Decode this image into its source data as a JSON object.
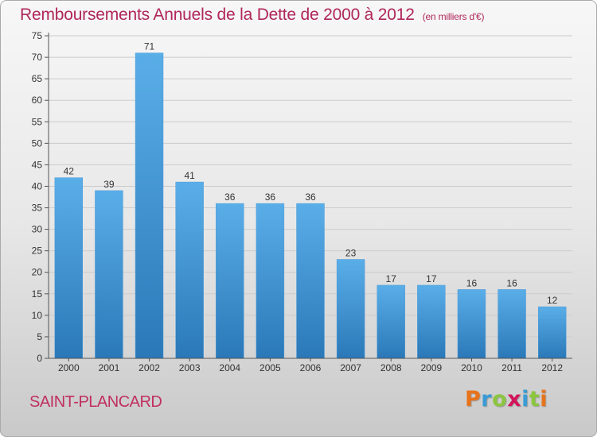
{
  "header": {
    "title": "Remboursements Annuels de la Dette de 2000 à 2012",
    "unit": "(en milliers d'€)"
  },
  "footer": {
    "place": "SAINT-PLANCARD",
    "logo_text": "Proxiti",
    "logo_colors": [
      "#e8731a",
      "#3a9bd5",
      "#8cc63f",
      "#d4145a",
      "#3a9bd5",
      "#8cc63f",
      "#e8731a"
    ]
  },
  "colors": {
    "title": "#b0275a",
    "bar_light": "#5aaee8",
    "bar_dark": "#2a78b8",
    "grid": "#cccccc"
  },
  "chart_data": {
    "type": "bar",
    "title": "Remboursements Annuels de la Dette de 2000 à 2012",
    "subtitle": "(en milliers d'€)",
    "categories": [
      "2000",
      "2001",
      "2002",
      "2003",
      "2004",
      "2005",
      "2006",
      "2007",
      "2008",
      "2009",
      "2010",
      "2011",
      "2012"
    ],
    "values": [
      42,
      39,
      71,
      41,
      36,
      36,
      36,
      23,
      17,
      17,
      16,
      16,
      12
    ],
    "ylim": [
      0,
      75
    ],
    "yticks": [
      0,
      5,
      10,
      15,
      20,
      25,
      30,
      35,
      40,
      45,
      50,
      55,
      60,
      65,
      70,
      75
    ],
    "grid": true,
    "data_labels": true
  }
}
